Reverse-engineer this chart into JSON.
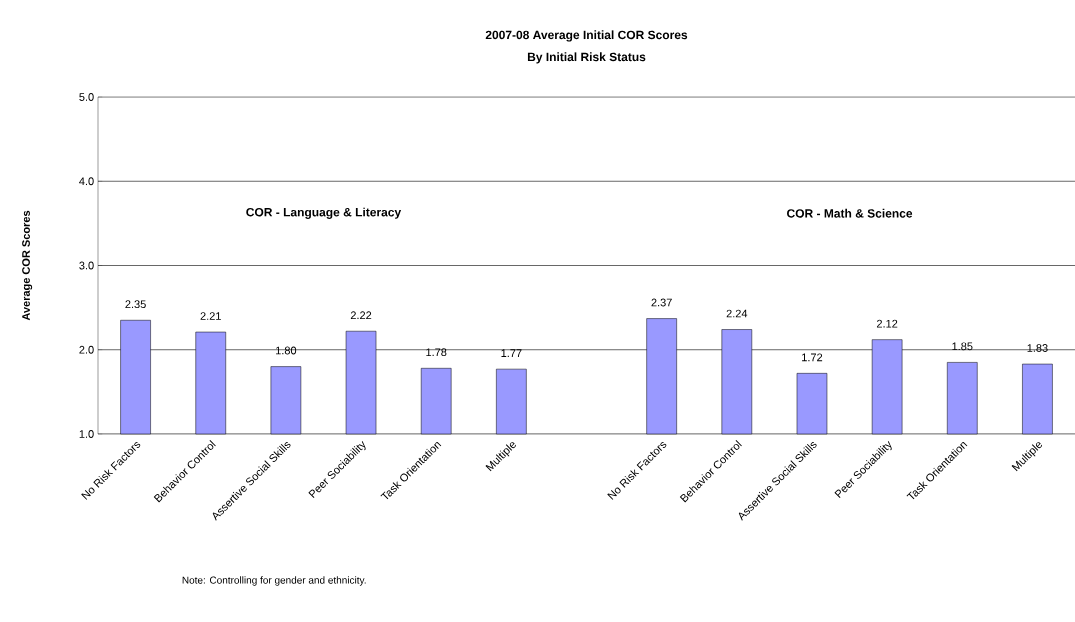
{
  "chart_data": {
    "type": "bar",
    "title": "2007-08 Average Initial COR Scores",
    "subtitle": "By Initial Risk Status",
    "ylabel": "Average COR Scores",
    "categories": [
      "No Risk Factors",
      "Behavior Control",
      "Assertive Social Skills",
      "Peer Sociability",
      "Task Orientation",
      "Multiple",
      null,
      "No Risk Factors",
      "Behavior Control",
      "Assertive Social Skills",
      "Peer Sociability",
      "Task Orientation",
      "Multiple"
    ],
    "values": [
      2.35,
      2.21,
      1.8,
      2.22,
      1.78,
      1.77,
      null,
      2.37,
      2.24,
      1.72,
      2.12,
      1.85,
      1.83
    ],
    "value_labels": [
      "2.35",
      "2.21",
      "1.80",
      "2.22",
      "1.78",
      "1.77",
      null,
      "2.37",
      "2.24",
      "1.72",
      "2.12",
      "1.85",
      "1.83"
    ],
    "color": "#9999ff",
    "ylim": [
      1,
      5
    ],
    "yticks": [
      {
        "value": 1,
        "label": "1.0"
      },
      {
        "value": 2,
        "label": "2.0"
      },
      {
        "value": 3,
        "label": "3.0"
      },
      {
        "value": 4,
        "label": "4.0"
      },
      {
        "value": 5,
        "label": "5.0"
      }
    ],
    "grid": "y",
    "annotations": [
      "COR - Language & Literacy",
      "COR - Math & Science",
      "Note: Controlling for gender and ethnicity."
    ]
  }
}
